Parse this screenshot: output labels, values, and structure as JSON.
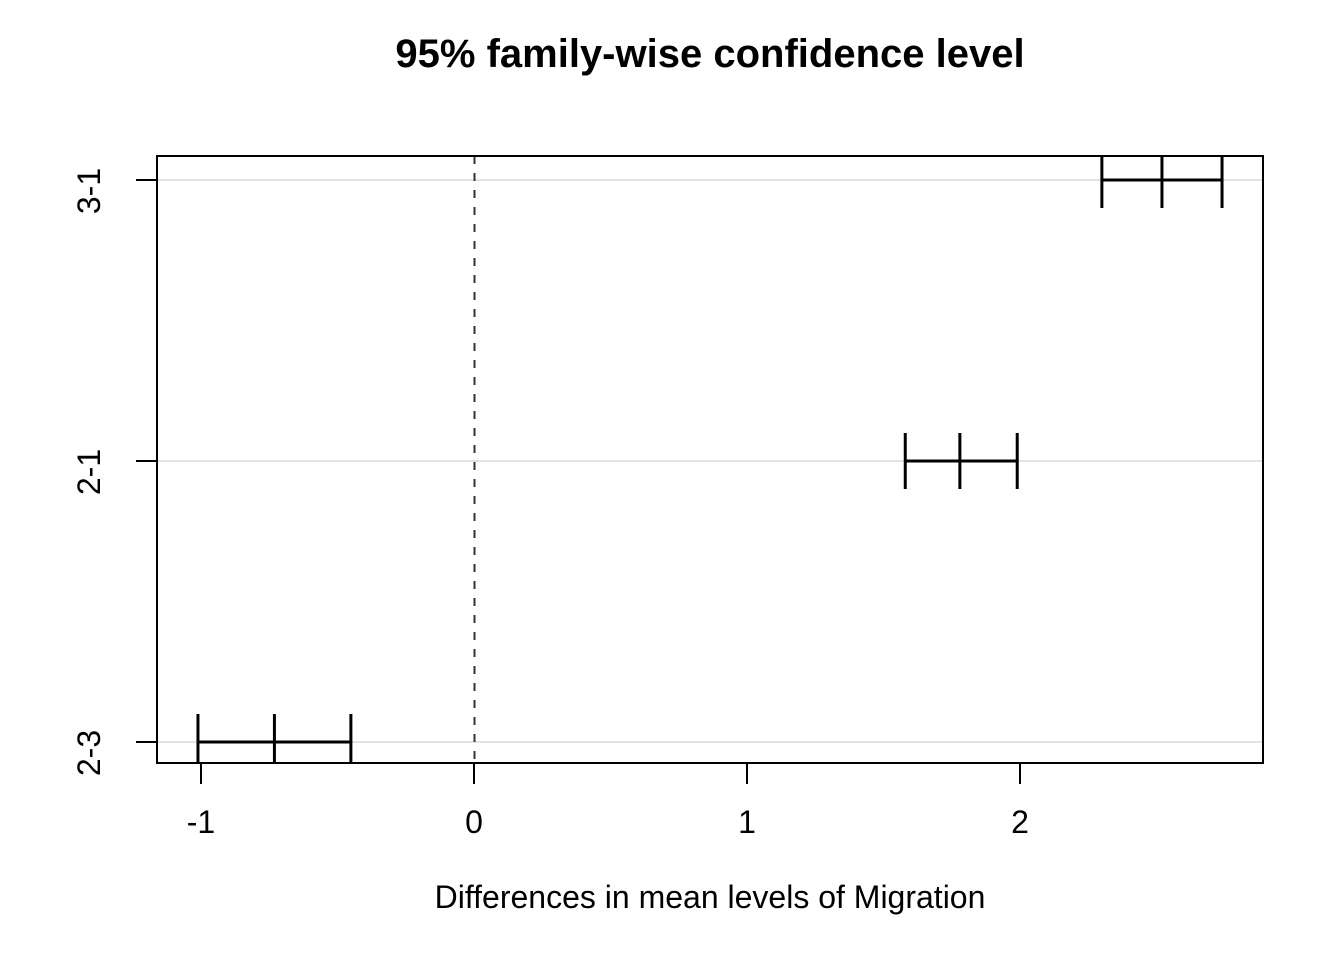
{
  "chart_data": {
    "type": "errorbar",
    "title": "95% family-wise confidence level",
    "xlabel": "Differences in mean levels of Migration",
    "x_ticks": [
      -1,
      0,
      1,
      2
    ],
    "xlim": [
      -1.16,
      2.89
    ],
    "reference_line_x": 0,
    "grid": true,
    "legend_position": "none",
    "rows": [
      {
        "label": "3-1",
        "lower": 2.3,
        "estimate": 2.52,
        "upper": 2.74
      },
      {
        "label": "2-1",
        "lower": 1.58,
        "estimate": 1.78,
        "upper": 1.99
      },
      {
        "label": "2-3",
        "lower": -1.01,
        "estimate": -0.73,
        "upper": -0.45
      }
    ],
    "colors": {
      "interval": "#000000",
      "grid": "#e2e2e2",
      "reference": "#333333",
      "border": "#000000",
      "text": "#000000",
      "background": "#ffffff"
    }
  }
}
